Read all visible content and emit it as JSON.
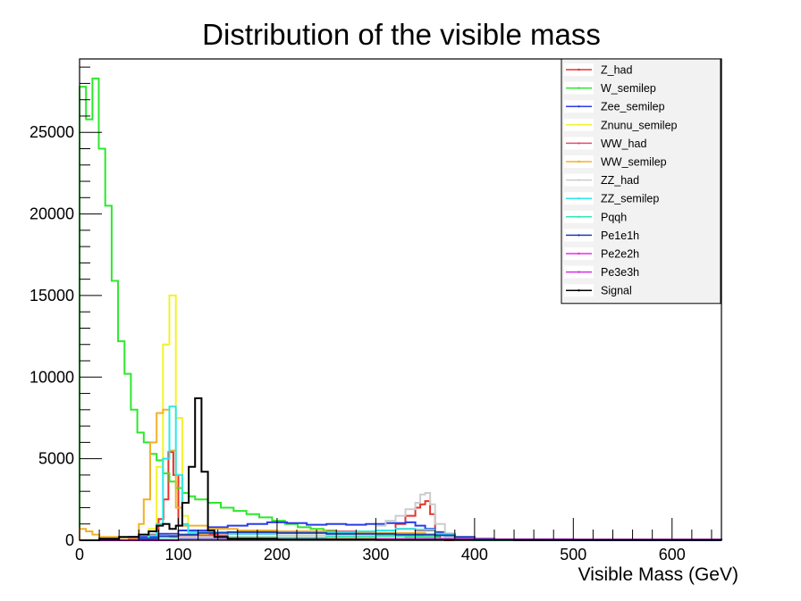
{
  "chart_data": {
    "type": "line",
    "style": "step-histogram",
    "title": "Distribution of the visible mass",
    "xlabel": "Visible Mass (GeV)",
    "ylabel": "",
    "xlim": [
      0,
      650
    ],
    "ylim": [
      0,
      29500
    ],
    "bin_width": 6.5,
    "x_ticks": [
      0,
      100,
      200,
      300,
      400,
      500,
      600
    ],
    "y_ticks": [
      0,
      5000,
      10000,
      15000,
      20000,
      25000
    ],
    "grid": false,
    "legend_position": "top-right",
    "series": [
      {
        "name": "Z_had",
        "color": "#e8322c",
        "points": [
          [
            0,
            0
          ],
          [
            60,
            0
          ],
          [
            70,
            350
          ],
          [
            80,
            1300
          ],
          [
            85,
            2500
          ],
          [
            90,
            5400
          ],
          [
            95,
            4000
          ],
          [
            100,
            900
          ],
          [
            110,
            350
          ],
          [
            140,
            200
          ],
          [
            200,
            150
          ],
          [
            300,
            600
          ],
          [
            320,
            1000
          ],
          [
            330,
            1500
          ],
          [
            340,
            2000
          ],
          [
            345,
            2200
          ],
          [
            350,
            2400
          ],
          [
            355,
            1600
          ],
          [
            360,
            500
          ],
          [
            365,
            100
          ],
          [
            370,
            0
          ],
          [
            650,
            0
          ]
        ]
      },
      {
        "name": "W_semilep",
        "color": "#2ce82c",
        "points": [
          [
            0,
            27800
          ],
          [
            6.5,
            25800
          ],
          [
            13,
            28300
          ],
          [
            19.5,
            24000
          ],
          [
            26,
            20500
          ],
          [
            32.5,
            15900
          ],
          [
            39,
            12200
          ],
          [
            45.5,
            10200
          ],
          [
            52,
            8000
          ],
          [
            58.5,
            6600
          ],
          [
            65,
            6000
          ],
          [
            71.5,
            5300
          ],
          [
            78,
            4900
          ],
          [
            84.5,
            4100
          ],
          [
            91,
            3600
          ],
          [
            97.5,
            3200
          ],
          [
            104,
            2900
          ],
          [
            110.5,
            2700
          ],
          [
            117,
            2500
          ],
          [
            130,
            2300
          ],
          [
            143,
            2000
          ],
          [
            156,
            1800
          ],
          [
            169,
            1600
          ],
          [
            182,
            1400
          ],
          [
            195,
            1200
          ],
          [
            208,
            1000
          ],
          [
            221,
            800
          ],
          [
            234,
            700
          ],
          [
            247,
            600
          ],
          [
            260,
            500
          ],
          [
            273,
            450
          ],
          [
            286,
            400
          ],
          [
            299,
            350
          ],
          [
            312,
            300
          ],
          [
            338,
            250
          ],
          [
            351,
            200
          ],
          [
            364,
            100
          ],
          [
            377,
            50
          ],
          [
            390,
            0
          ],
          [
            650,
            0
          ]
        ]
      },
      {
        "name": "Zee_semilep",
        "color": "#2c3be8",
        "points": [
          [
            0,
            0
          ],
          [
            50,
            200
          ],
          [
            80,
            400
          ],
          [
            100,
            600
          ],
          [
            130,
            800
          ],
          [
            150,
            900
          ],
          [
            170,
            1000
          ],
          [
            190,
            1100
          ],
          [
            210,
            1050
          ],
          [
            230,
            950
          ],
          [
            250,
            1000
          ],
          [
            270,
            950
          ],
          [
            290,
            1000
          ],
          [
            310,
            1050
          ],
          [
            330,
            1100
          ],
          [
            340,
            900
          ],
          [
            350,
            700
          ],
          [
            360,
            500
          ],
          [
            370,
            300
          ],
          [
            380,
            100
          ],
          [
            390,
            0
          ],
          [
            650,
            0
          ]
        ]
      },
      {
        "name": "Znunu_semilep",
        "color": "#f2f22c",
        "points": [
          [
            0,
            0
          ],
          [
            60,
            100
          ],
          [
            70,
            700
          ],
          [
            78,
            4500
          ],
          [
            84.5,
            12000
          ],
          [
            91,
            15000
          ],
          [
            97.5,
            7500
          ],
          [
            104,
            1500
          ],
          [
            110,
            400
          ],
          [
            130,
            200
          ],
          [
            200,
            150
          ],
          [
            300,
            100
          ],
          [
            350,
            50
          ],
          [
            400,
            0
          ],
          [
            650,
            0
          ]
        ]
      },
      {
        "name": "WW_had",
        "color": "#e84c6a",
        "points": [
          [
            0,
            0
          ],
          [
            50,
            50
          ],
          [
            80,
            200
          ],
          [
            100,
            300
          ],
          [
            150,
            400
          ],
          [
            200,
            500
          ],
          [
            250,
            550
          ],
          [
            300,
            600
          ],
          [
            320,
            700
          ],
          [
            340,
            600
          ],
          [
            360,
            400
          ],
          [
            380,
            100
          ],
          [
            400,
            0
          ],
          [
            650,
            0
          ]
        ]
      },
      {
        "name": "WW_semilep",
        "color": "#f2b02c",
        "points": [
          [
            0,
            700
          ],
          [
            6.5,
            550
          ],
          [
            13,
            350
          ],
          [
            20,
            200
          ],
          [
            40,
            150
          ],
          [
            60,
            1000
          ],
          [
            65,
            2500
          ],
          [
            71.5,
            6000
          ],
          [
            78,
            7800
          ],
          [
            84.5,
            8000
          ],
          [
            91,
            5500
          ],
          [
            97.5,
            2000
          ],
          [
            104,
            900
          ],
          [
            130,
            700
          ],
          [
            160,
            600
          ],
          [
            200,
            550
          ],
          [
            250,
            500
          ],
          [
            300,
            450
          ],
          [
            350,
            300
          ],
          [
            380,
            100
          ],
          [
            400,
            0
          ],
          [
            650,
            0
          ]
        ]
      },
      {
        "name": "ZZ_had",
        "color": "#cccccc",
        "points": [
          [
            0,
            0
          ],
          [
            60,
            0
          ],
          [
            80,
            200
          ],
          [
            90,
            300
          ],
          [
            100,
            200
          ],
          [
            200,
            300
          ],
          [
            300,
            900
          ],
          [
            310,
            1200
          ],
          [
            320,
            1500
          ],
          [
            330,
            1900
          ],
          [
            340,
            2300
          ],
          [
            345,
            2800
          ],
          [
            350,
            2900
          ],
          [
            355,
            2200
          ],
          [
            360,
            1000
          ],
          [
            370,
            200
          ],
          [
            380,
            0
          ],
          [
            650,
            0
          ]
        ]
      },
      {
        "name": "ZZ_semilep",
        "color": "#2ce8e8",
        "points": [
          [
            0,
            0
          ],
          [
            60,
            100
          ],
          [
            70,
            300
          ],
          [
            78,
            1000
          ],
          [
            84.5,
            5000
          ],
          [
            91,
            8200
          ],
          [
            97.5,
            4000
          ],
          [
            104,
            1000
          ],
          [
            110,
            500
          ],
          [
            150,
            400
          ],
          [
            200,
            450
          ],
          [
            250,
            500
          ],
          [
            280,
            550
          ],
          [
            300,
            600
          ],
          [
            320,
            700
          ],
          [
            340,
            650
          ],
          [
            360,
            400
          ],
          [
            380,
            100
          ],
          [
            400,
            0
          ],
          [
            650,
            0
          ]
        ]
      },
      {
        "name": "Pqqh",
        "color": "#2ce8b4",
        "points": [
          [
            0,
            0
          ],
          [
            80,
            50
          ],
          [
            100,
            100
          ],
          [
            150,
            150
          ],
          [
            200,
            150
          ],
          [
            250,
            200
          ],
          [
            300,
            250
          ],
          [
            330,
            200
          ],
          [
            360,
            100
          ],
          [
            400,
            0
          ],
          [
            650,
            0
          ]
        ]
      },
      {
        "name": "Pe1e1h",
        "color": "#1a3fb4",
        "points": [
          [
            0,
            0
          ],
          [
            60,
            100
          ],
          [
            80,
            250
          ],
          [
            100,
            350
          ],
          [
            120,
            450
          ],
          [
            150,
            500
          ],
          [
            200,
            450
          ],
          [
            250,
            400
          ],
          [
            300,
            400
          ],
          [
            320,
            350
          ],
          [
            340,
            350
          ],
          [
            360,
            300
          ],
          [
            380,
            200
          ],
          [
            400,
            100
          ],
          [
            420,
            50
          ],
          [
            440,
            0
          ],
          [
            650,
            0
          ]
        ]
      },
      {
        "name": "Pe2e2h",
        "color": "#e82ce8",
        "points": [
          [
            0,
            0
          ],
          [
            100,
            50
          ],
          [
            200,
            60
          ],
          [
            300,
            80
          ],
          [
            400,
            60
          ],
          [
            500,
            40
          ],
          [
            650,
            30
          ]
        ]
      },
      {
        "name": "Pe3e3h",
        "color": "#d62ce8",
        "points": [
          [
            0,
            0
          ],
          [
            100,
            40
          ],
          [
            200,
            50
          ],
          [
            300,
            60
          ],
          [
            400,
            50
          ],
          [
            500,
            40
          ],
          [
            650,
            20
          ]
        ]
      },
      {
        "name": "Signal",
        "color": "#000000",
        "points": [
          [
            0,
            0
          ],
          [
            20,
            100
          ],
          [
            40,
            200
          ],
          [
            60,
            350
          ],
          [
            70,
            550
          ],
          [
            78,
            900
          ],
          [
            84.5,
            1000
          ],
          [
            91,
            700
          ],
          [
            97.5,
            900
          ],
          [
            104,
            2300
          ],
          [
            110.5,
            4500
          ],
          [
            117,
            8700
          ],
          [
            123.5,
            4200
          ],
          [
            130,
            600
          ],
          [
            136.5,
            200
          ],
          [
            150,
            100
          ],
          [
            200,
            50
          ],
          [
            300,
            20
          ],
          [
            650,
            0
          ]
        ]
      }
    ]
  }
}
